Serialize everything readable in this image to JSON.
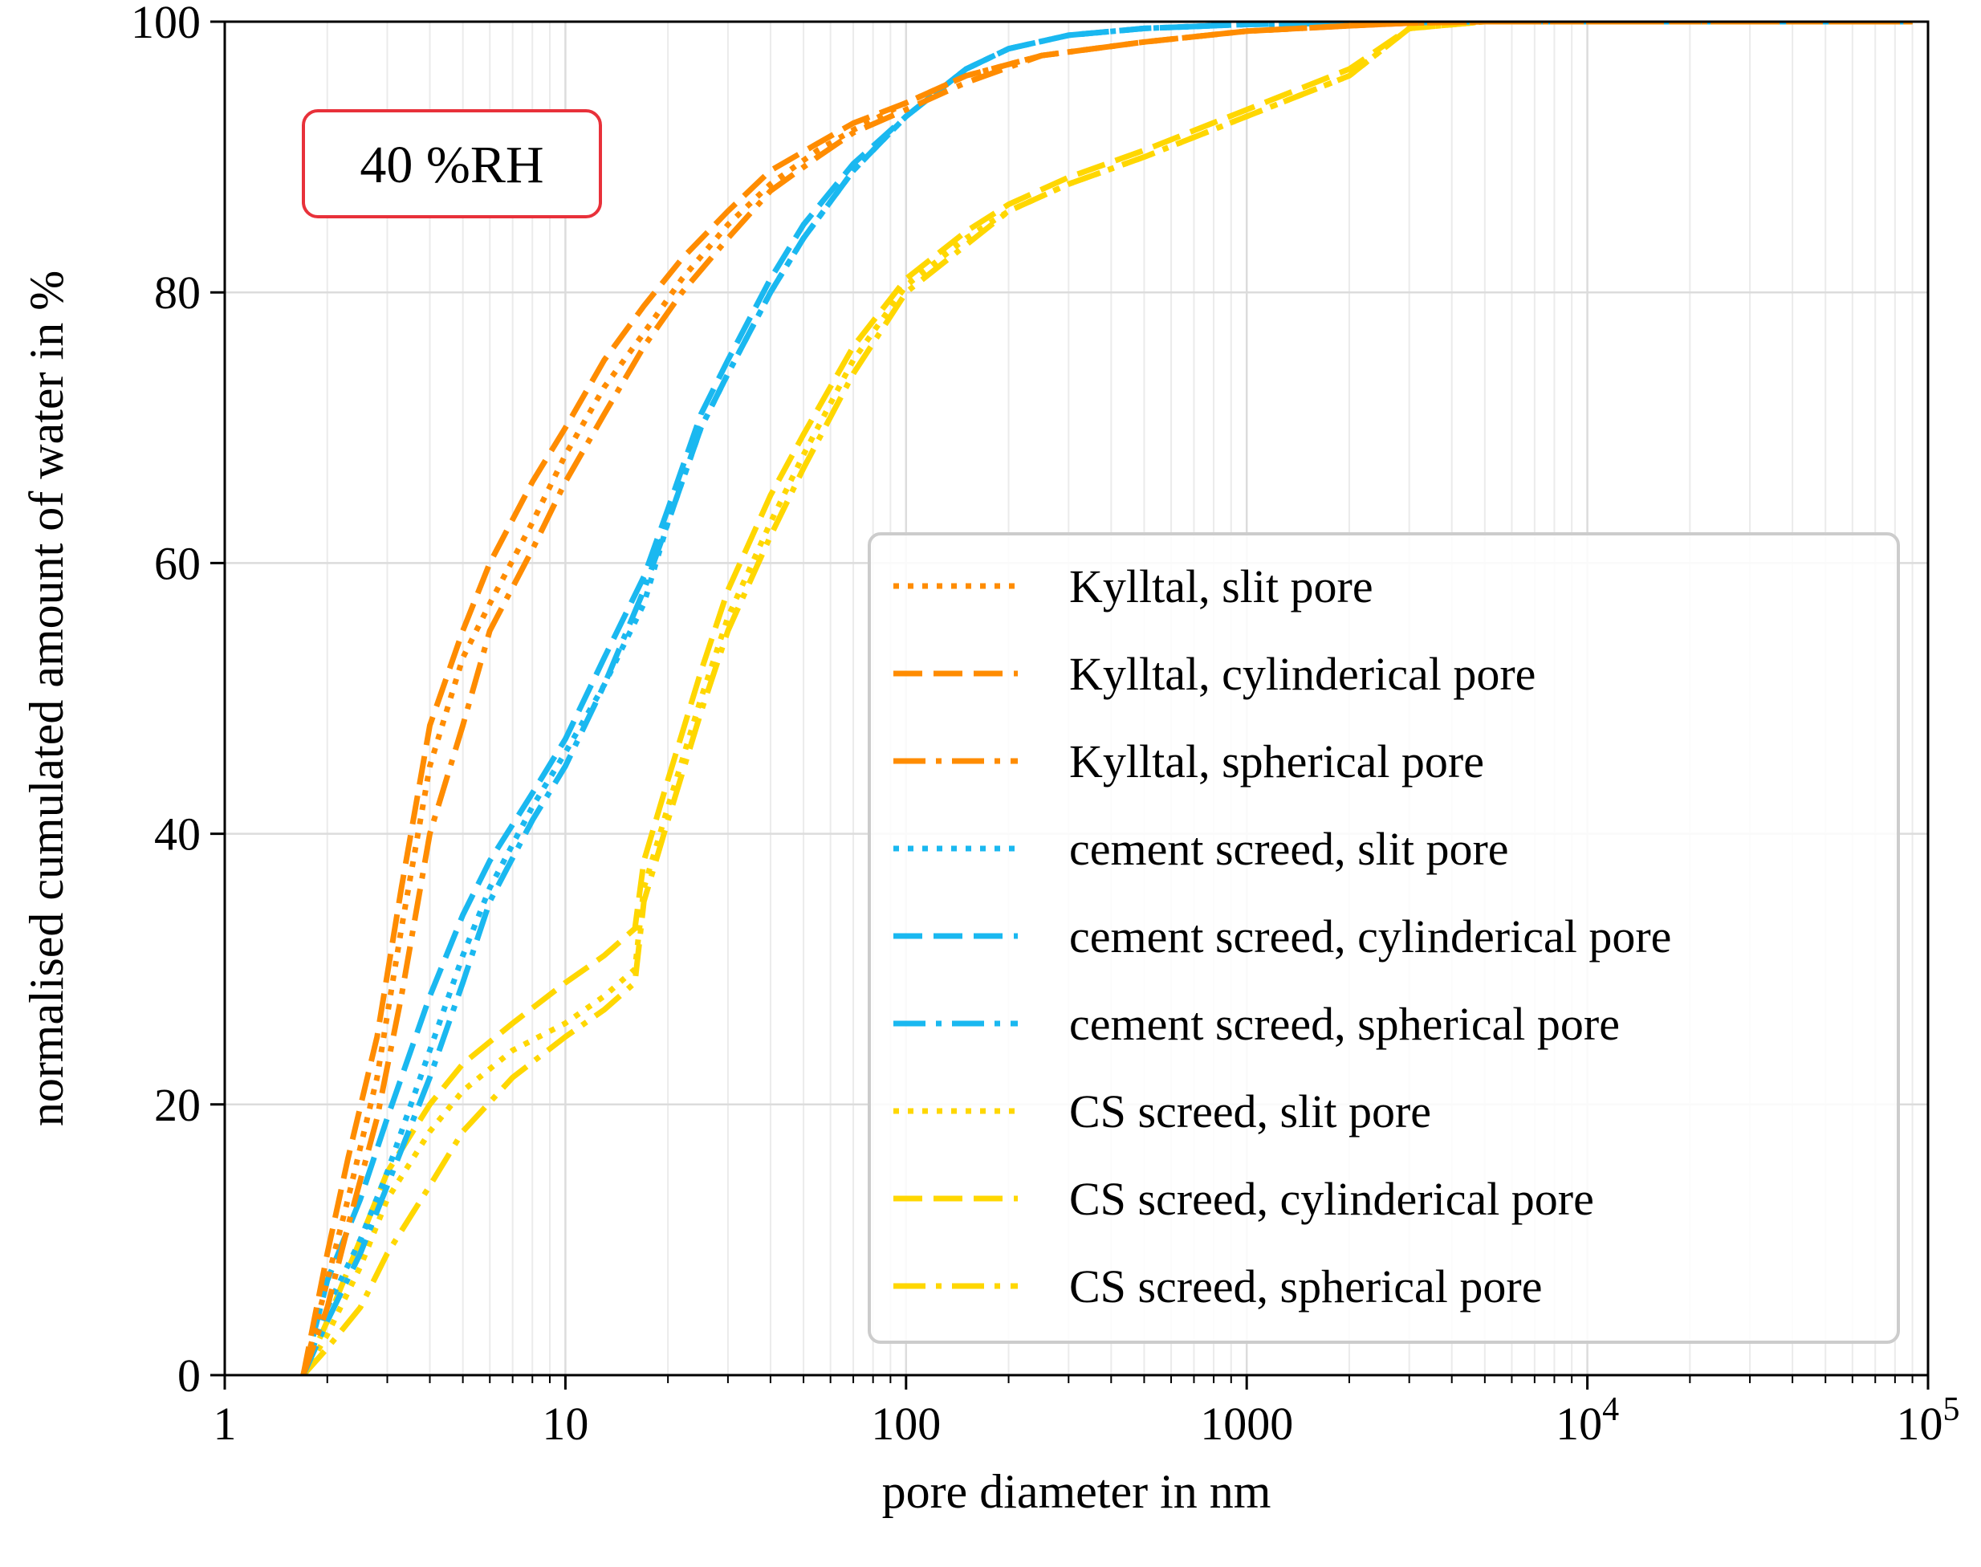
{
  "chart_data": {
    "type": "line",
    "xscale": "log",
    "xlim": [
      1,
      100000
    ],
    "ylim": [
      0,
      100
    ],
    "xlabel": "pore diameter in nm",
    "ylabel": "normalised cumulated amount of water in %",
    "annotation": "40 %RH",
    "annotation_color": "#e8313a",
    "grid": true,
    "legend_position": "lower-right",
    "xticks": [
      {
        "value": 1,
        "label": "1"
      },
      {
        "value": 10,
        "label": "10"
      },
      {
        "value": 100,
        "label": "100"
      },
      {
        "value": 1000,
        "label": "1000"
      },
      {
        "value": 10000,
        "base": "10",
        "exp": "4"
      },
      {
        "value": 100000,
        "base": "10",
        "exp": "5"
      }
    ],
    "yticks": [
      {
        "value": 0,
        "label": "0"
      },
      {
        "value": 20,
        "label": "20"
      },
      {
        "value": 40,
        "label": "40"
      },
      {
        "value": 60,
        "label": "60"
      },
      {
        "value": 80,
        "label": "80"
      },
      {
        "value": 100,
        "label": "100"
      }
    ],
    "series": [
      {
        "name": "Kylltal, slit pore",
        "color": "#ff8c00",
        "dash": "dotted",
        "x": [
          1.7,
          2.0,
          2.3,
          2.8,
          3.3,
          4.0,
          5.0,
          6.0,
          8.0,
          10,
          13,
          17,
          22,
          30,
          40,
          55,
          70,
          100,
          150,
          250,
          500,
          1000,
          2000,
          3000,
          5000,
          90000
        ],
        "y": [
          0,
          7,
          13,
          22,
          33,
          45,
          53,
          57,
          63,
          68,
          73,
          77,
          81,
          85,
          88,
          90.5,
          92,
          94,
          96,
          97.5,
          98.5,
          99.3,
          99.7,
          99.9,
          100,
          100
        ]
      },
      {
        "name": "Kylltal, cylinderical pore",
        "color": "#ff8c00",
        "dash": "dashed",
        "x": [
          1.7,
          2.0,
          2.3,
          2.8,
          3.3,
          4.0,
          5.0,
          6.0,
          8.0,
          10,
          13,
          17,
          22,
          30,
          40,
          55,
          70,
          100,
          150,
          250,
          500,
          1000,
          2000,
          3000,
          5000,
          90000
        ],
        "y": [
          0,
          9,
          16,
          25,
          36,
          48,
          55,
          60,
          66,
          70,
          75,
          79,
          82.5,
          86,
          89,
          91,
          92.5,
          94,
          96,
          97.5,
          98.5,
          99.3,
          99.7,
          99.9,
          100,
          100
        ]
      },
      {
        "name": "Kylltal, spherical pore",
        "color": "#ff8c00",
        "dash": "dashdot",
        "x": [
          1.7,
          2.0,
          2.3,
          2.8,
          3.3,
          4.0,
          5.0,
          6.0,
          8.0,
          10,
          13,
          17,
          22,
          30,
          40,
          55,
          70,
          100,
          150,
          250,
          500,
          1000,
          2000,
          3000,
          5000,
          90000
        ],
        "y": [
          0,
          5,
          11,
          19,
          28,
          40,
          48,
          55,
          61,
          66,
          71,
          76,
          80,
          84,
          87.5,
          90,
          91.8,
          93.5,
          95.5,
          97.5,
          98.5,
          99.3,
          99.7,
          99.9,
          100,
          100
        ]
      },
      {
        "name": "cement screed, slit pore",
        "color": "#1ab8f0",
        "dash": "dotted",
        "x": [
          1.7,
          2.0,
          2.5,
          3.0,
          4.0,
          5.0,
          6.0,
          8.0,
          10,
          13,
          17,
          20,
          25,
          30,
          40,
          50,
          70,
          100,
          150,
          200,
          300,
          500,
          1000,
          2000,
          5000,
          90000
        ],
        "y": [
          0,
          5,
          10,
          15,
          24,
          31,
          36,
          42,
          46,
          51,
          57,
          63,
          70,
          74,
          80,
          84,
          89,
          93,
          96.5,
          98,
          99,
          99.5,
          99.8,
          99.9,
          100,
          100
        ]
      },
      {
        "name": "cement screed, cylinderical pore",
        "color": "#1ab8f0",
        "dash": "dashed",
        "x": [
          1.7,
          2.0,
          2.5,
          3.0,
          4.0,
          5.0,
          6.0,
          8.0,
          10,
          13,
          17,
          20,
          25,
          30,
          40,
          50,
          70,
          100,
          150,
          200,
          300,
          500,
          1000,
          2000,
          5000,
          90000
        ],
        "y": [
          0,
          7,
          13,
          19,
          28,
          34,
          38,
          43,
          47,
          53,
          59,
          64,
          71,
          75,
          81,
          85,
          89.5,
          93,
          96.5,
          98,
          99,
          99.5,
          99.8,
          99.9,
          100,
          100
        ]
      },
      {
        "name": "cement screed, spherical pore",
        "color": "#1ab8f0",
        "dash": "dashdot",
        "x": [
          1.7,
          2.0,
          2.5,
          3.0,
          4.0,
          5.0,
          6.0,
          8.0,
          10,
          13,
          17,
          20,
          25,
          30,
          40,
          50,
          70,
          100,
          150,
          200,
          300,
          500,
          1000,
          2000,
          5000,
          90000
        ],
        "y": [
          0,
          4,
          9,
          14,
          22,
          29,
          35,
          41,
          45,
          51,
          58,
          63,
          70,
          74,
          80,
          84,
          89,
          93,
          96.5,
          98,
          99,
          99.5,
          99.8,
          99.9,
          100,
          100
        ]
      },
      {
        "name": "CS screed, slit pore",
        "color": "#ffd700",
        "dash": "dotted",
        "x": [
          1.7,
          2.0,
          2.5,
          3.0,
          4.0,
          5.0,
          7.0,
          10,
          13,
          16,
          17,
          20,
          25,
          30,
          40,
          50,
          70,
          100,
          150,
          200,
          300,
          500,
          1000,
          2000,
          3000,
          5000,
          90000
        ],
        "y": [
          0,
          3,
          8,
          13,
          18,
          21,
          24,
          26,
          28,
          30,
          36,
          42,
          50,
          56,
          63,
          68,
          75,
          80.5,
          84,
          86,
          88,
          90,
          93,
          96,
          99.5,
          100,
          100
        ]
      },
      {
        "name": "CS screed, cylinderical pore",
        "color": "#ffd700",
        "dash": "dashed",
        "x": [
          1.7,
          2.0,
          2.5,
          3.0,
          4.0,
          5.0,
          7.0,
          10,
          13,
          16,
          17,
          20,
          25,
          30,
          40,
          50,
          70,
          100,
          150,
          200,
          300,
          500,
          1000,
          2000,
          3000,
          5000,
          90000
        ],
        "y": [
          0,
          4,
          10,
          15,
          20,
          23,
          26,
          29,
          31,
          33,
          38,
          44,
          52,
          58,
          65,
          69.5,
          76,
          81,
          84.5,
          86.5,
          88.5,
          90.5,
          93.5,
          96.5,
          99.5,
          100,
          100
        ]
      },
      {
        "name": "CS screed, spherical pore",
        "color": "#ffd700",
        "dash": "dashdot",
        "x": [
          1.7,
          2.0,
          2.5,
          3.0,
          4.0,
          5.0,
          7.0,
          10,
          13,
          16,
          17,
          20,
          25,
          30,
          40,
          50,
          70,
          100,
          150,
          200,
          300,
          500,
          1000,
          2000,
          3000,
          5000,
          90000
        ],
        "y": [
          0,
          2,
          5,
          9,
          14,
          18,
          22,
          25,
          27,
          29,
          35,
          41,
          49,
          55,
          62,
          67,
          74,
          80,
          83.5,
          86,
          88,
          90,
          93,
          96,
          99.5,
          100,
          100
        ]
      }
    ]
  }
}
